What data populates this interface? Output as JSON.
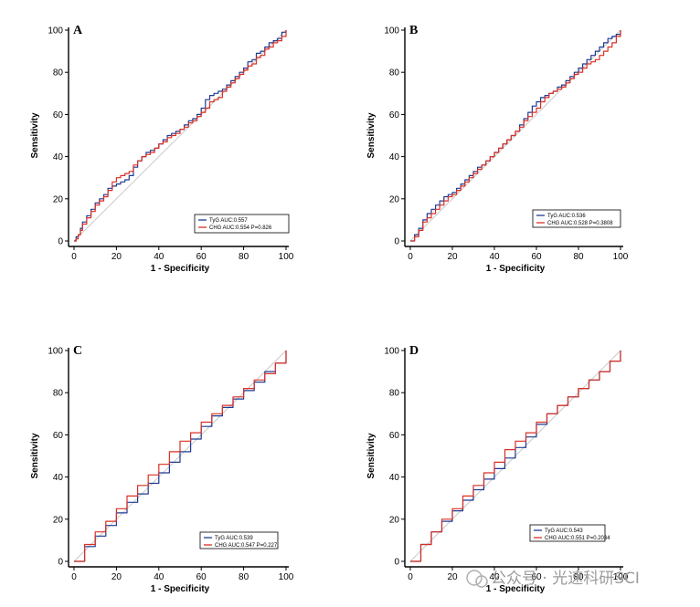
{
  "chart_data": [
    {
      "type": "line",
      "panel": "A",
      "xlabel": "1 - Specificity",
      "ylabel": "Sensitivity",
      "xlim": [
        0,
        100
      ],
      "ylim": [
        0,
        100
      ],
      "xticks": [
        0,
        20,
        40,
        60,
        80,
        100
      ],
      "yticks": [
        0,
        20,
        40,
        60,
        80,
        100
      ],
      "reference_line": true,
      "series": [
        {
          "name": "TyG",
          "legend": "TyG  AUC:0.557",
          "color": "#1f3a93",
          "x": [
            0,
            1,
            2,
            3,
            4,
            6,
            8,
            10,
            12,
            14,
            16,
            18,
            20,
            22,
            24,
            26,
            28,
            30,
            32,
            34,
            36,
            38,
            40,
            42,
            44,
            46,
            48,
            50,
            52,
            54,
            56,
            58,
            60,
            62,
            64,
            66,
            68,
            70,
            72,
            74,
            76,
            78,
            80,
            82,
            84,
            86,
            88,
            90,
            92,
            94,
            96,
            98,
            100
          ],
          "y": [
            0,
            2,
            3,
            6,
            9,
            12,
            15,
            18,
            20,
            22,
            25,
            26,
            27,
            28,
            29,
            31,
            35,
            38,
            40,
            42,
            43,
            44,
            46,
            48,
            50,
            51,
            52,
            53,
            55,
            57,
            58,
            60,
            63,
            67,
            69,
            70,
            71,
            72,
            74,
            76,
            78,
            80,
            82,
            85,
            86,
            89,
            90,
            92,
            94,
            95,
            96,
            99,
            100
          ]
        },
        {
          "name": "CHG",
          "legend": "CHG AUC:0.554  P=0.826",
          "color": "#d93025",
          "x": [
            0,
            1,
            2,
            3,
            4,
            6,
            8,
            10,
            12,
            14,
            16,
            18,
            20,
            22,
            24,
            26,
            28,
            30,
            32,
            34,
            36,
            38,
            40,
            42,
            44,
            46,
            48,
            50,
            52,
            54,
            56,
            58,
            60,
            62,
            64,
            66,
            68,
            70,
            72,
            74,
            76,
            78,
            80,
            82,
            84,
            86,
            88,
            90,
            92,
            94,
            96,
            98,
            100
          ],
          "y": [
            0,
            1,
            3,
            5,
            8,
            11,
            14,
            17,
            19,
            21,
            24,
            28,
            30,
            31,
            32,
            33,
            36,
            38,
            40,
            41,
            42,
            44,
            46,
            47,
            49,
            50,
            51,
            53,
            54,
            56,
            57,
            59,
            61,
            63,
            66,
            67,
            68,
            71,
            73,
            75,
            77,
            79,
            81,
            83,
            84,
            87,
            88,
            91,
            92,
            94,
            95,
            97,
            100
          ]
        }
      ]
    },
    {
      "type": "line",
      "panel": "B",
      "xlabel": "1 - Specificity",
      "ylabel": "Sensitivity",
      "xlim": [
        0,
        100
      ],
      "ylim": [
        0,
        100
      ],
      "xticks": [
        0,
        20,
        40,
        60,
        80,
        100
      ],
      "yticks": [
        0,
        20,
        40,
        60,
        80,
        100
      ],
      "reference_line": true,
      "series": [
        {
          "name": "TyG",
          "legend": "TyG  AUC:0.536",
          "color": "#1f3a93",
          "x": [
            0,
            2,
            4,
            6,
            8,
            10,
            12,
            14,
            16,
            18,
            20,
            22,
            24,
            26,
            28,
            30,
            32,
            34,
            36,
            38,
            40,
            42,
            44,
            46,
            48,
            50,
            52,
            54,
            56,
            58,
            60,
            62,
            64,
            66,
            68,
            70,
            72,
            74,
            76,
            78,
            80,
            82,
            84,
            86,
            88,
            90,
            92,
            94,
            96,
            98,
            100
          ],
          "y": [
            0,
            3,
            6,
            10,
            13,
            15,
            17,
            19,
            21,
            22,
            23,
            25,
            27,
            29,
            31,
            33,
            35,
            36,
            38,
            40,
            42,
            44,
            46,
            48,
            50,
            52,
            55,
            58,
            61,
            64,
            66,
            68,
            69,
            70,
            71,
            73,
            74,
            76,
            78,
            80,
            82,
            84,
            86,
            88,
            90,
            92,
            94,
            96,
            97,
            98,
            100
          ]
        },
        {
          "name": "CHG",
          "legend": "CHG AUC:0.528  P=0.3808",
          "color": "#d93025",
          "x": [
            0,
            2,
            4,
            6,
            8,
            10,
            12,
            14,
            16,
            18,
            20,
            22,
            24,
            26,
            28,
            30,
            32,
            34,
            36,
            38,
            40,
            42,
            44,
            46,
            48,
            50,
            52,
            54,
            56,
            58,
            60,
            62,
            64,
            66,
            68,
            70,
            72,
            74,
            76,
            78,
            80,
            82,
            84,
            86,
            88,
            90,
            92,
            94,
            96,
            98,
            100
          ],
          "y": [
            0,
            2,
            5,
            9,
            11,
            13,
            15,
            17,
            19,
            21,
            22,
            24,
            26,
            28,
            30,
            32,
            34,
            36,
            38,
            40,
            42,
            44,
            46,
            48,
            50,
            52,
            54,
            57,
            59,
            61,
            63,
            66,
            68,
            70,
            71,
            72,
            73,
            75,
            77,
            79,
            80,
            82,
            84,
            85,
            86,
            88,
            90,
            92,
            94,
            97,
            100
          ]
        }
      ]
    },
    {
      "type": "line",
      "panel": "C",
      "xlabel": "1 - Specificity",
      "ylabel": "Sensitivity",
      "xlim": [
        0,
        100
      ],
      "ylim": [
        0,
        100
      ],
      "xticks": [
        0,
        20,
        40,
        60,
        80,
        100
      ],
      "yticks": [
        0,
        20,
        40,
        60,
        80,
        100
      ],
      "reference_line": true,
      "series": [
        {
          "name": "TyG",
          "legend": "TyG  AUC:0.539",
          "color": "#1f3a93",
          "x": [
            0,
            5,
            10,
            15,
            20,
            25,
            30,
            35,
            40,
            45,
            50,
            55,
            60,
            65,
            70,
            75,
            80,
            85,
            90,
            95,
            100
          ],
          "y": [
            0,
            7,
            12,
            17,
            23,
            28,
            32,
            37,
            42,
            47,
            52,
            58,
            64,
            69,
            73,
            77,
            81,
            85,
            90,
            94,
            100
          ]
        },
        {
          "name": "CHG",
          "legend": "CHG AUC:0.547  P=0.227",
          "color": "#d93025",
          "x": [
            0,
            5,
            10,
            15,
            20,
            25,
            30,
            35,
            40,
            45,
            50,
            55,
            60,
            65,
            70,
            75,
            80,
            85,
            90,
            95,
            100
          ],
          "y": [
            0,
            8,
            14,
            19,
            25,
            31,
            36,
            41,
            46,
            52,
            57,
            61,
            66,
            70,
            74,
            78,
            82,
            86,
            89,
            94,
            100
          ]
        }
      ]
    },
    {
      "type": "line",
      "panel": "D",
      "xlabel": "1 - Specificity",
      "ylabel": "Sensitivity",
      "xlim": [
        0,
        100
      ],
      "ylim": [
        0,
        100
      ],
      "xticks": [
        0,
        20,
        40,
        60,
        80,
        100
      ],
      "yticks": [
        0,
        20,
        40,
        60,
        80,
        100
      ],
      "reference_line": true,
      "series": [
        {
          "name": "TyG",
          "legend": "TyG  AUC:0.543",
          "color": "#1f3a93",
          "x": [
            0,
            5,
            10,
            15,
            20,
            25,
            30,
            35,
            40,
            45,
            50,
            55,
            60,
            65,
            70,
            75,
            80,
            85,
            90,
            95,
            100
          ],
          "y": [
            0,
            8,
            14,
            19,
            24,
            29,
            34,
            39,
            44,
            49,
            54,
            59,
            65,
            70,
            74,
            78,
            82,
            86,
            90,
            95,
            100
          ]
        },
        {
          "name": "CHG",
          "legend": "CHG AUC:0.551  P=0.2034",
          "color": "#d93025",
          "x": [
            0,
            5,
            10,
            15,
            20,
            25,
            30,
            35,
            40,
            45,
            50,
            55,
            60,
            65,
            70,
            75,
            80,
            85,
            90,
            95,
            100
          ],
          "y": [
            0,
            8,
            14,
            20,
            25,
            31,
            36,
            42,
            47,
            53,
            57,
            61,
            66,
            70,
            74,
            78,
            82,
            86,
            90,
            95,
            100
          ]
        }
      ]
    }
  ],
  "watermark": "公众号 · 光速科研SCI",
  "colors": {
    "tyg": "#1f3a93",
    "chg": "#d93025",
    "reference": "#c9c9c9"
  }
}
